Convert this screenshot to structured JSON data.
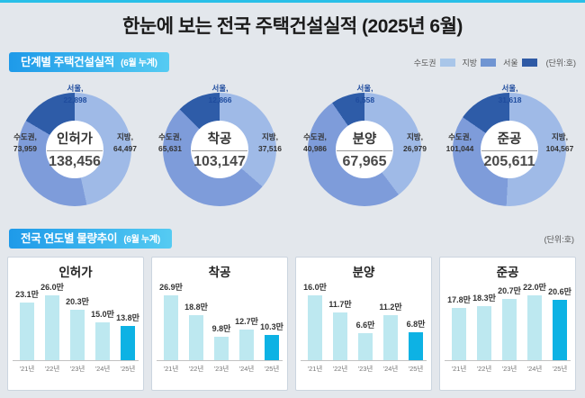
{
  "page": {
    "title": "한눈에 보는 전국 주택건설실적 (2025년 6월)",
    "background": "#E3E7EC",
    "top_accent": "#29BFE8"
  },
  "section1": {
    "title": "단계별 주택건설실적",
    "subtitle": "(6월 누계)",
    "unit": "(단위:호)",
    "legend": [
      {
        "label": "수도권",
        "color": "#A9C6E9"
      },
      {
        "label": "지방",
        "color": "#7095D2"
      },
      {
        "label": "서울",
        "color": "#2F5AA5"
      }
    ]
  },
  "section2": {
    "title": "전국 연도별 물량추이",
    "subtitle": "(6월 누계)",
    "unit": "(단위:호)"
  },
  "colors": {
    "donut": {
      "jibang": "#9FBAE7",
      "sudogwon": "#7E9CDA",
      "seoul": "#2E5CA8"
    },
    "bar": "#BDE8F0",
    "bar_highlight": "#0DB2E4",
    "header_gradient": [
      "#1E9AE9",
      "#55CBF2"
    ]
  },
  "chart_data": [
    {
      "type": "donut",
      "title": "인허가",
      "total_label": "138,456",
      "labels": {
        "seoul": "서울,",
        "sudogwon": "수도권,",
        "jibang": "지방,"
      },
      "values": {
        "seoul": "22,898",
        "sudogwon": "73,959",
        "jibang": "64,497"
      },
      "order_clockwise_from_top": [
        "지방",
        "수도권(서울제외)",
        "서울"
      ]
    },
    {
      "type": "donut",
      "title": "착공",
      "total_label": "103,147",
      "labels": {
        "seoul": "서울,",
        "sudogwon": "수도권,",
        "jibang": "지방,"
      },
      "values": {
        "seoul": "12,866",
        "sudogwon": "65,631",
        "jibang": "37,516"
      },
      "order_clockwise_from_top": [
        "지방",
        "수도권(서울제외)",
        "서울"
      ]
    },
    {
      "type": "donut",
      "title": "분양",
      "total_label": "67,965",
      "labels": {
        "seoul": "서울,",
        "sudogwon": "수도권,",
        "jibang": "지방,"
      },
      "values": {
        "seoul": "6,558",
        "sudogwon": "40,986",
        "jibang": "26,979"
      },
      "order_clockwise_from_top": [
        "지방",
        "수도권(서울제외)",
        "서울"
      ]
    },
    {
      "type": "donut",
      "title": "준공",
      "total_label": "205,611",
      "labels": {
        "seoul": "서울,",
        "sudogwon": "수도권,",
        "jibang": "지방,"
      },
      "values": {
        "seoul": "31,618",
        "sudogwon": "101,044",
        "jibang": "104,567"
      },
      "order_clockwise_from_top": [
        "지방",
        "수도권(서울제외)",
        "서울"
      ]
    },
    {
      "type": "bar",
      "title": "인허가",
      "categories": [
        "'21년",
        "'22년",
        "'23년",
        "'24년",
        "'25년"
      ],
      "values": [
        23.1,
        26.0,
        20.3,
        15.0,
        13.8
      ],
      "value_labels": [
        "23.1만",
        "26.0만",
        "20.3만",
        "15.0만",
        "13.8만"
      ],
      "highlight_index": 4,
      "unit": "만 호",
      "ylim": [
        0,
        27.5
      ]
    },
    {
      "type": "bar",
      "title": "착공",
      "categories": [
        "'21년",
        "'22년",
        "'23년",
        "'24년",
        "'25년"
      ],
      "values": [
        26.9,
        18.8,
        9.8,
        12.7,
        10.3
      ],
      "value_labels": [
        "26.9만",
        "18.8만",
        "9.8만",
        "12.7만",
        "10.3만"
      ],
      "highlight_index": 4,
      "unit": "만 호",
      "ylim": [
        0,
        28.5
      ]
    },
    {
      "type": "bar",
      "title": "분양",
      "categories": [
        "'21년",
        "'22년",
        "'23년",
        "'24년",
        "'25년"
      ],
      "values": [
        16.0,
        11.7,
        6.6,
        11.2,
        6.8
      ],
      "value_labels": [
        "16.0만",
        "11.7만",
        "6.6만",
        "11.2만",
        "6.8만"
      ],
      "highlight_index": 4,
      "unit": "만 호",
      "ylim": [
        0,
        17
      ]
    },
    {
      "type": "bar",
      "title": "준공",
      "categories": [
        "'21년",
        "'22년",
        "'23년",
        "'24년",
        "'25년"
      ],
      "values": [
        17.8,
        18.3,
        20.7,
        22.0,
        20.6
      ],
      "value_labels": [
        "17.8만",
        "18.3만",
        "20.7만",
        "22.0만",
        "20.6만"
      ],
      "highlight_index": 4,
      "unit": "만 호",
      "ylim": [
        0,
        23.5
      ]
    }
  ]
}
